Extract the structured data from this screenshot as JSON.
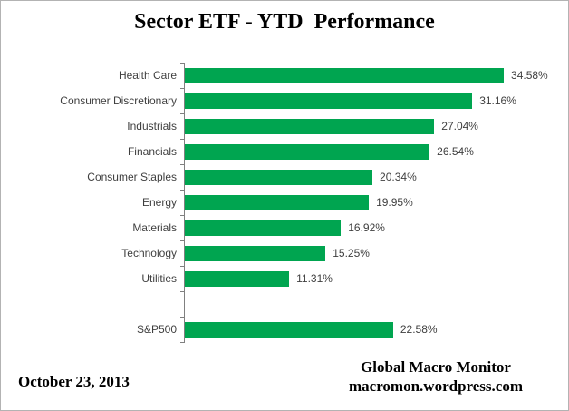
{
  "window": {
    "background": "#ffffff",
    "border_color": "#b3b3b3"
  },
  "title": "Sector ETF - YTD  Performance",
  "footer": {
    "date": "October 23, 2013",
    "brand_line1": "Global Macro Monitor",
    "brand_line2": "macromon.wordpress.com"
  },
  "colors": {
    "bar": "#00A550",
    "axis": "#808080",
    "label_text": "#3f3f3f",
    "title_text": "#000000"
  },
  "chart_data": {
    "type": "bar",
    "orientation": "horizontal",
    "title": "Sector ETF - YTD  Performance",
    "xlabel": "",
    "ylabel": "",
    "xlim": [
      0,
      40
    ],
    "grid": false,
    "legend": false,
    "bar_color": "#00A550",
    "categories": [
      "Health Care",
      "Consumer Discretionary",
      "Industrials",
      "Financials",
      "Consumer Staples",
      "Energy",
      "Materials",
      "Technology",
      "Utilities",
      "",
      "S&P500"
    ],
    "values": [
      34.58,
      31.16,
      27.04,
      26.54,
      20.34,
      19.95,
      16.92,
      15.25,
      11.31,
      null,
      22.58
    ],
    "value_labels": [
      "34.58%",
      "31.16%",
      "27.04%",
      "26.54%",
      "20.34%",
      "19.95%",
      "16.92%",
      "15.25%",
      "11.31%",
      "",
      "22.58%"
    ]
  }
}
